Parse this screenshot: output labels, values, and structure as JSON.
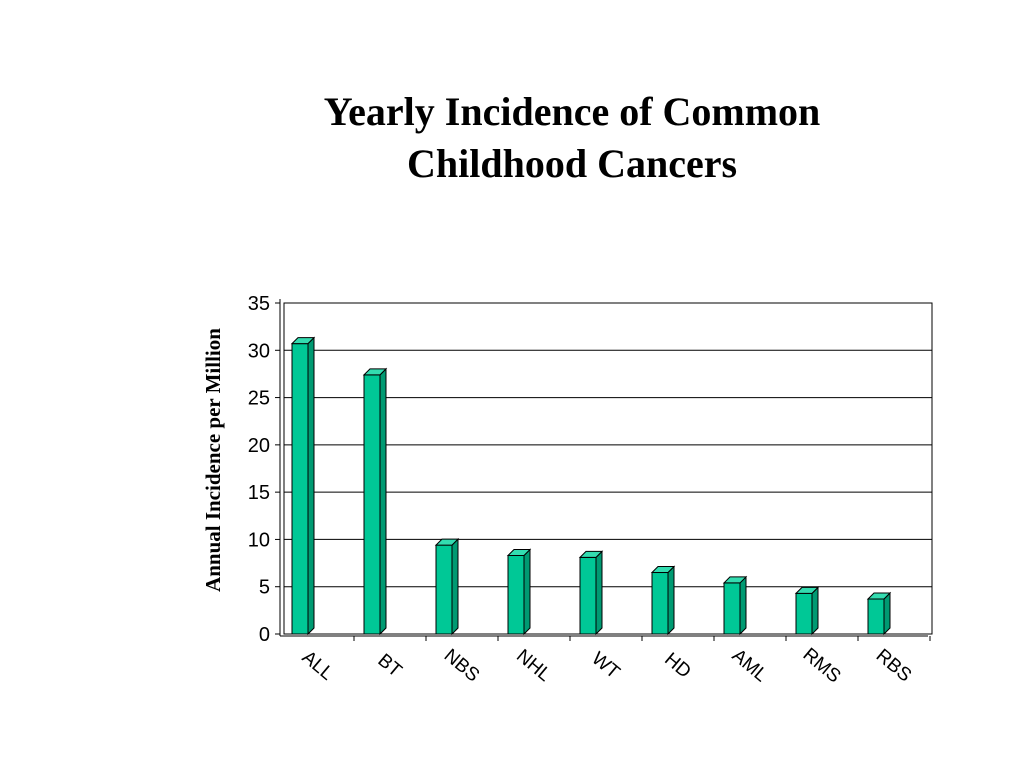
{
  "chart_data": {
    "type": "bar",
    "title_lines": [
      "Yearly Incidence of Common",
      "Childhood Cancers"
    ],
    "ylabel": "Annual Incidence per Million",
    "xlabel": "",
    "categories": [
      "ALL",
      "BT",
      "NBS",
      "NHL",
      "WT",
      "HD",
      "AML",
      "RMS",
      "RBS"
    ],
    "values": [
      30.7,
      27.4,
      9.4,
      8.3,
      8.1,
      6.5,
      5.4,
      4.3,
      3.7
    ],
    "ylim": [
      0,
      35
    ],
    "yticks": [
      0,
      5,
      10,
      15,
      20,
      25,
      30,
      35
    ],
    "grid": true,
    "style": "3d-bar",
    "bar_color": "#00c896",
    "bar_side_color": "#009a72",
    "bar_top_color": "#33dcb0"
  }
}
